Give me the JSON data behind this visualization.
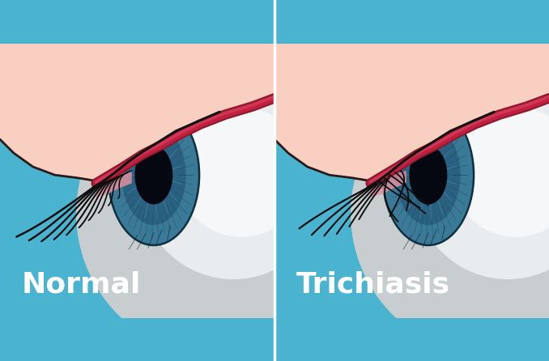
{
  "bg": "#4ab4d0",
  "skin_color": "#f8cfc0",
  "skin_edge_color": "#2a1a1a",
  "eyelid_red_dark": "#8b1a2a",
  "eyelid_red_mid": "#c02040",
  "eyelid_red_light": "#d84060",
  "sclera_white": "#e8ecee",
  "sclera_light": "#f5f7f8",
  "sclera_shadow": "#c8cdd0",
  "iris_blue1": "#3a7a98",
  "iris_blue2": "#2a6080",
  "iris_blue3": "#1a4a62",
  "iris_dark": "#0f3040",
  "pupil_color": "#050810",
  "lash_color": "#0d0d0d",
  "conj_pink": "#e090a0",
  "conj_dark": "#c06070",
  "divider_color": "#ffffff",
  "title_normal": "Normal",
  "title_trichiasis": "Trichiasis",
  "title_color": "#ffffff",
  "title_fontsize": 26
}
